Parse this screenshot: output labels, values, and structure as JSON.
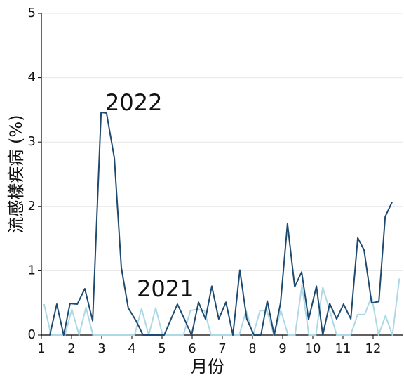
{
  "chart_data": {
    "type": "line",
    "xlabel": "月份",
    "ylabel": "流感樣疾病 (%)",
    "xlim": [
      1,
      13
    ],
    "xticks": [
      1,
      2,
      3,
      4,
      5,
      6,
      7,
      8,
      9,
      10,
      11,
      12
    ],
    "ylim": [
      0,
      5
    ],
    "yticks": [
      0,
      1,
      2,
      3,
      4,
      5
    ],
    "grid": true,
    "series": [
      {
        "name": "2021",
        "color": "#add8e6",
        "x": [
          1.09,
          1.32,
          1.55,
          1.78,
          2.01,
          2.25,
          2.48,
          2.71,
          2.94,
          3.17,
          3.4,
          3.63,
          3.86,
          4.09,
          4.32,
          4.56,
          4.79,
          5.02,
          5.25,
          5.48,
          5.71,
          5.94,
          6.17,
          6.4,
          6.63,
          6.87,
          7.1,
          7.33,
          7.56,
          7.79,
          8.02,
          8.25,
          8.48,
          8.71,
          8.94,
          9.18,
          9.41,
          9.64,
          9.87,
          10.1,
          10.33,
          10.56,
          10.79,
          11.02,
          11.25,
          11.49,
          11.72,
          11.95,
          12.18,
          12.41,
          12.64,
          12.87
        ],
        "values": [
          0.48,
          0,
          0,
          0,
          0.4,
          0,
          0.43,
          0,
          0,
          0,
          0,
          0,
          0,
          0,
          0.41,
          0,
          0.42,
          0,
          0,
          0,
          0,
          0.38,
          0.4,
          0.38,
          0,
          0,
          0,
          0,
          0,
          0.38,
          0,
          0.38,
          0.38,
          0,
          0.38,
          0,
          0,
          0.77,
          0,
          0,
          0.74,
          0.38,
          0,
          0,
          0,
          0.32,
          0.32,
          0.6,
          0,
          0.3,
          0,
          0.88
        ]
      },
      {
        "name": "2022",
        "color": "#1f4a70",
        "x": [
          1.28,
          1.51,
          1.74,
          1.95,
          2.19,
          2.44,
          2.7,
          2.98,
          3.16,
          3.42,
          3.65,
          3.88,
          4.14,
          4.37,
          4.6,
          4.84,
          5.07,
          5.3,
          5.51,
          5.74,
          5.98,
          6.21,
          6.44,
          6.65,
          6.88,
          7.12,
          7.35,
          7.58,
          7.81,
          8.05,
          8.28,
          8.49,
          8.72,
          8.93,
          9.16,
          9.4,
          9.63,
          9.86,
          10.12,
          10.33,
          10.56,
          10.79,
          11.02,
          11.26,
          11.49,
          11.7,
          11.95,
          12.19,
          12.4,
          12.63
        ],
        "values": [
          0,
          0.48,
          0,
          0.49,
          0.48,
          0.72,
          0.22,
          3.46,
          3.45,
          2.75,
          1.05,
          0.42,
          0.22,
          0,
          0,
          0,
          0,
          0.25,
          0.48,
          0.25,
          0,
          0.51,
          0.25,
          0.76,
          0.25,
          0.51,
          0,
          1.01,
          0.25,
          0,
          0,
          0.53,
          0,
          0.5,
          1.73,
          0.75,
          0.98,
          0.24,
          0.76,
          0,
          0.49,
          0.25,
          0.48,
          0.25,
          1.51,
          1.32,
          0.5,
          0.52,
          1.84,
          2.07
        ]
      }
    ]
  }
}
